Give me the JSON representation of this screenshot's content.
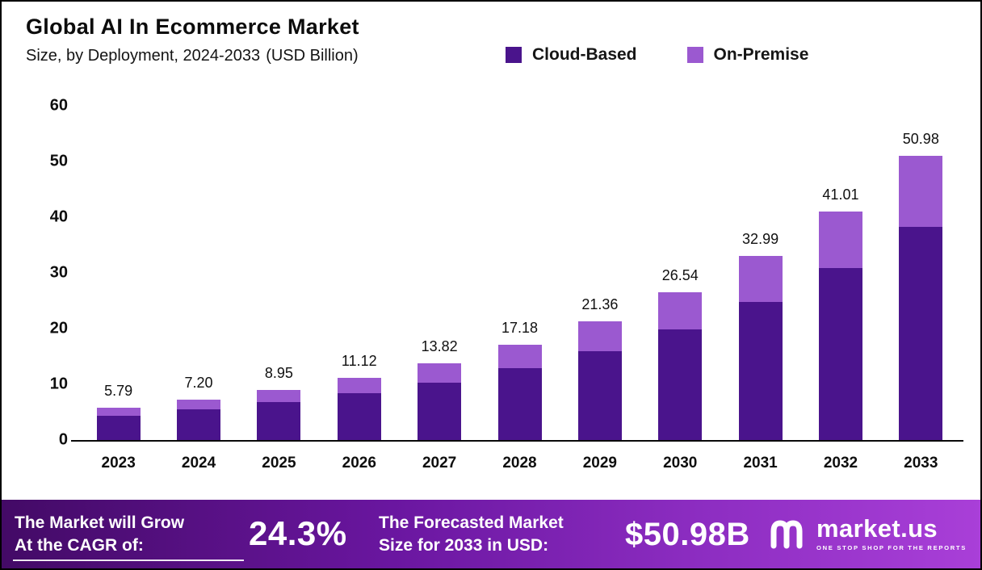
{
  "header": {
    "title": "Global AI In Ecommerce Market",
    "subtitle": "Size, by Deployment, 2024-2033",
    "subtitle_suffix": "(USD Billion)"
  },
  "legend": [
    {
      "label": "Cloud-Based",
      "color": "#4a148c"
    },
    {
      "label": "On-Premise",
      "color": "#9b59d0"
    }
  ],
  "chart_data": {
    "type": "bar",
    "stacked": true,
    "title": "Global AI In Ecommerce Market Size, by Deployment, 2024-2033 (USD Billion)",
    "categories": [
      "2023",
      "2024",
      "2025",
      "2026",
      "2027",
      "2028",
      "2029",
      "2030",
      "2031",
      "2032",
      "2033"
    ],
    "series": [
      {
        "name": "Cloud-Based",
        "color": "#4a148c",
        "values": [
          4.4,
          5.5,
          6.8,
          8.4,
          10.3,
          12.9,
          16.0,
          19.9,
          24.8,
          30.9,
          38.3
        ]
      },
      {
        "name": "On-Premise",
        "color": "#9b59d0",
        "values": [
          1.39,
          1.7,
          2.15,
          2.72,
          3.52,
          4.28,
          5.36,
          6.64,
          8.19,
          10.11,
          12.68
        ]
      }
    ],
    "totals": [
      5.79,
      7.2,
      8.95,
      11.12,
      13.82,
      17.18,
      21.36,
      26.54,
      32.99,
      41.01,
      50.98
    ],
    "total_labels": [
      "5.79",
      "7.20",
      "8.95",
      "11.12",
      "13.82",
      "17.18",
      "21.36",
      "26.54",
      "32.99",
      "41.01",
      "50.98"
    ],
    "xlabel": "",
    "ylabel": "USD Billion",
    "ylim": [
      0,
      60
    ],
    "yticks": [
      0,
      10,
      20,
      30,
      40,
      50,
      60
    ],
    "grid": false,
    "legend_position": "top"
  },
  "footer": {
    "cagr_label_line1": "The Market will Grow",
    "cagr_label_line2": "At the CAGR of:",
    "cagr_value": "24.3%",
    "forecast_label_line1": "The Forecasted Market",
    "forecast_label_line2": "Size for 2033 in USD:",
    "forecast_value": "$50.98B",
    "brand": "market.us",
    "brand_tagline": "ONE STOP SHOP FOR THE REPORTS"
  }
}
